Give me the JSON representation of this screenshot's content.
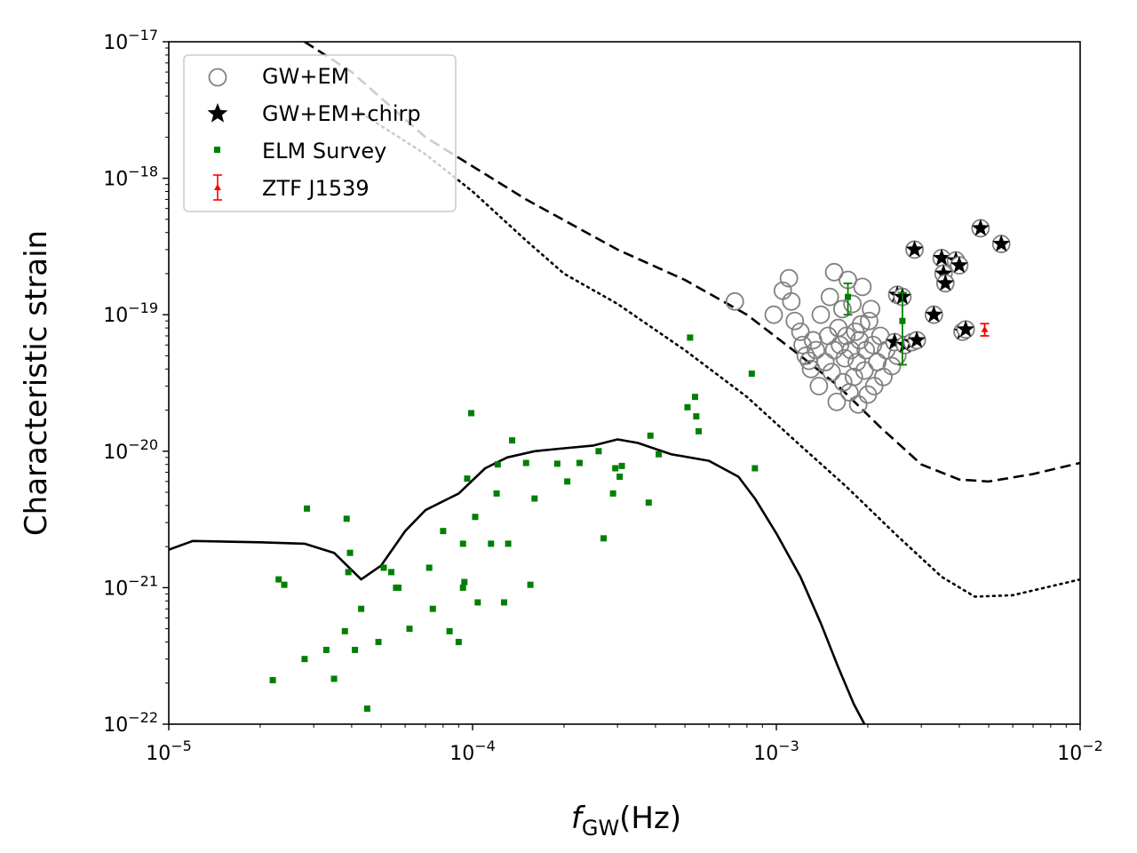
{
  "chart_data": {
    "type": "scatter",
    "xscale": "log",
    "yscale": "log",
    "xlim": [
      1e-05,
      0.01
    ],
    "ylim": [
      1e-22,
      1e-17
    ],
    "xlabel": "f",
    "xlabel_sub": "GW",
    "xlabel_unit": "(Hz)",
    "ylabel": "Characteristic strain",
    "x_ticks": [
      {
        "value": 1e-05,
        "base": "10",
        "exp": "−5"
      },
      {
        "value": 0.0001,
        "base": "10",
        "exp": "−4"
      },
      {
        "value": 0.001,
        "base": "10",
        "exp": "−3"
      },
      {
        "value": 0.01,
        "base": "10",
        "exp": "−2"
      }
    ],
    "y_ticks": [
      {
        "value": 1e-22,
        "base": "10",
        "exp": "−22"
      },
      {
        "value": 1e-21,
        "base": "10",
        "exp": "−21"
      },
      {
        "value": 1e-20,
        "base": "10",
        "exp": "−20"
      },
      {
        "value": 1e-19,
        "base": "10",
        "exp": "−19"
      },
      {
        "value": 1e-18,
        "base": "10",
        "exp": "−18"
      },
      {
        "value": 1e-17,
        "base": "10",
        "exp": "−17"
      }
    ],
    "legend_position": "top-left",
    "legend": [
      {
        "label": "GW+EM",
        "marker": "open-circle",
        "color": "#808080"
      },
      {
        "label": "GW+EM+chirp",
        "marker": "star",
        "color": "#000000"
      },
      {
        "label": "ELM Survey",
        "marker": "square",
        "color": "#008000"
      },
      {
        "label": "ZTF J1539",
        "marker": "errorbar-triangle",
        "color": "#ff0000"
      }
    ],
    "curves": [
      {
        "name": "sensitivity-dashed",
        "style": "dashed",
        "color": "#000000",
        "points": [
          [
            2.8e-05,
            1e-17
          ],
          [
            4e-05,
            6e-18
          ],
          [
            7e-05,
            2e-18
          ],
          [
            0.00015,
            7e-19
          ],
          [
            0.0003,
            3e-19
          ],
          [
            0.0005,
            1.8e-19
          ],
          [
            0.0008,
            1e-19
          ],
          [
            0.0012,
            5e-20
          ],
          [
            0.0016,
            3e-20
          ],
          [
            0.0022,
            1.5e-20
          ],
          [
            0.003,
            8e-21
          ],
          [
            0.004,
            6.2e-21
          ],
          [
            0.005,
            6e-21
          ],
          [
            0.007,
            6.8e-21
          ],
          [
            0.01,
            8.2e-21
          ]
        ]
      },
      {
        "name": "sensitivity-dotted",
        "style": "dotted",
        "color": "#000000",
        "points": [
          [
            4.3e-05,
            3e-18
          ],
          [
            7e-05,
            1.5e-18
          ],
          [
            0.0001,
            8e-19
          ],
          [
            0.00015,
            3.5e-19
          ],
          [
            0.0002,
            2e-19
          ],
          [
            0.0003,
            1.2e-19
          ],
          [
            0.0005,
            5.5e-20
          ],
          [
            0.0008,
            2.5e-20
          ],
          [
            0.0012,
            1.1e-20
          ],
          [
            0.0017,
            5.5e-21
          ],
          [
            0.0025,
            2.4e-21
          ],
          [
            0.0035,
            1.2e-21
          ],
          [
            0.0045,
            8.6e-22
          ],
          [
            0.006,
            8.8e-22
          ],
          [
            0.01,
            1.15e-21
          ]
        ]
      },
      {
        "name": "galactic-foreground",
        "style": "solid",
        "color": "#000000",
        "points": [
          [
            1e-05,
            1.9e-21
          ],
          [
            1.2e-05,
            2.2e-21
          ],
          [
            2e-05,
            2.15e-21
          ],
          [
            2.8e-05,
            2.1e-21
          ],
          [
            3.5e-05,
            1.8e-21
          ],
          [
            4.3e-05,
            1.15e-21
          ],
          [
            5e-05,
            1.45e-21
          ],
          [
            6e-05,
            2.6e-21
          ],
          [
            7e-05,
            3.7e-21
          ],
          [
            9e-05,
            4.9e-21
          ],
          [
            0.00011,
            7.5e-21
          ],
          [
            0.00013,
            9e-21
          ],
          [
            0.00016,
            1e-20
          ],
          [
            0.0002,
            1.05e-20
          ],
          [
            0.00025,
            1.1e-20
          ],
          [
            0.0003,
            1.22e-20
          ],
          [
            0.00035,
            1.15e-20
          ],
          [
            0.00045,
            9.5e-21
          ],
          [
            0.0006,
            8.5e-21
          ],
          [
            0.00075,
            6.5e-21
          ],
          [
            0.00085,
            4.5e-21
          ],
          [
            0.001,
            2.5e-21
          ],
          [
            0.0012,
            1.2e-21
          ],
          [
            0.0014,
            5.5e-22
          ],
          [
            0.0016,
            2.6e-22
          ],
          [
            0.0018,
            1.4e-22
          ],
          [
            0.00195,
            1e-22
          ]
        ]
      }
    ],
    "series": [
      {
        "name": "GW+EM",
        "marker": "open-circle",
        "color": "#808080",
        "points": [
          [
            0.00073,
            1.25e-19
          ],
          [
            0.00098,
            1e-19
          ],
          [
            0.00105,
            1.5e-19
          ],
          [
            0.0011,
            1.85e-19
          ],
          [
            0.00112,
            1.25e-19
          ],
          [
            0.00115,
            9e-20
          ],
          [
            0.0012,
            7.5e-20
          ],
          [
            0.00122,
            6e-20
          ],
          [
            0.00125,
            5e-20
          ],
          [
            0.00128,
            4.6e-20
          ],
          [
            0.0013,
            4e-20
          ],
          [
            0.00132,
            6.5e-20
          ],
          [
            0.00135,
            5.5e-20
          ],
          [
            0.00138,
            3e-20
          ],
          [
            0.0014,
            1e-19
          ],
          [
            0.00145,
            4.5e-20
          ],
          [
            0.00148,
            7e-20
          ],
          [
            0.0015,
            1.35e-19
          ],
          [
            0.00152,
            3.8e-20
          ],
          [
            0.00155,
            2.05e-19
          ],
          [
            0.00155,
            5.5e-20
          ],
          [
            0.00158,
            2.3e-20
          ],
          [
            0.0016,
            8e-20
          ],
          [
            0.00162,
            6e-20
          ],
          [
            0.00165,
            1.1e-19
          ],
          [
            0.00166,
            3.2e-20
          ],
          [
            0.00168,
            4.8e-20
          ],
          [
            0.0017,
            7e-20
          ],
          [
            0.00172,
            1.8e-19
          ],
          [
            0.00174,
            2.7e-20
          ],
          [
            0.00176,
            5.5e-20
          ],
          [
            0.00178,
            1.2e-19
          ],
          [
            0.0018,
            3.5e-20
          ],
          [
            0.00182,
            7.5e-20
          ],
          [
            0.00184,
            4.5e-20
          ],
          [
            0.00186,
            2.2e-20
          ],
          [
            0.00188,
            6.5e-20
          ],
          [
            0.0019,
            8.5e-20
          ],
          [
            0.00192,
            1.6e-19
          ],
          [
            0.00195,
            3.9e-20
          ],
          [
            0.00197,
            5.5e-20
          ],
          [
            0.002,
            2.6e-20
          ],
          [
            0.00202,
            9e-20
          ],
          [
            0.00205,
            1.1e-19
          ],
          [
            0.00208,
            6e-20
          ],
          [
            0.0021,
            3e-20
          ],
          [
            0.00215,
            4.5e-20
          ],
          [
            0.0022,
            7e-20
          ],
          [
            0.00225,
            3.5e-20
          ],
          [
            0.0023,
            5.5e-20
          ],
          [
            0.0024,
            4.2e-20
          ],
          [
            0.0025,
            5e-20
          ]
        ]
      },
      {
        "name": "GW+EM+chirp",
        "marker": "star",
        "color": "#000000",
        "points": [
          [
            0.00245,
            6.3e-20
          ],
          [
            0.0025,
            1.4e-19
          ],
          [
            0.0026,
            1.35e-19
          ],
          [
            0.00265,
            6e-20
          ],
          [
            0.0028,
            6.3e-20
          ],
          [
            0.0029,
            6.5e-20
          ],
          [
            0.00285,
            3e-19
          ],
          [
            0.0033,
            1e-19
          ],
          [
            0.0035,
            2.6e-19
          ],
          [
            0.00355,
            2e-19
          ],
          [
            0.0036,
            1.7e-19
          ],
          [
            0.0039,
            2.5e-19
          ],
          [
            0.004,
            2.3e-19
          ],
          [
            0.0041,
            7.5e-20
          ],
          [
            0.0042,
            7.8e-20
          ],
          [
            0.0047,
            4.3e-19
          ],
          [
            0.0055,
            3.3e-19
          ]
        ]
      },
      {
        "name": "ELM Survey",
        "marker": "square",
        "color": "#008000",
        "points": [
          [
            2.2e-05,
            2.1e-22
          ],
          [
            2.3e-05,
            1.15e-21
          ],
          [
            2.4e-05,
            1.05e-21
          ],
          [
            2.8e-05,
            3e-22
          ],
          [
            2.85e-05,
            3.8e-21
          ],
          [
            3.3e-05,
            3.5e-22
          ],
          [
            3.5e-05,
            2.15e-22
          ],
          [
            3.8e-05,
            4.8e-22
          ],
          [
            3.85e-05,
            3.2e-21
          ],
          [
            3.9e-05,
            1.3e-21
          ],
          [
            3.95e-05,
            1.8e-21
          ],
          [
            4.1e-05,
            3.5e-22
          ],
          [
            4.3e-05,
            7e-22
          ],
          [
            4.5e-05,
            1.3e-22
          ],
          [
            4.9e-05,
            4e-22
          ],
          [
            5.1e-05,
            1.4e-21
          ],
          [
            5.4e-05,
            1.3e-21
          ],
          [
            5.6e-05,
            1e-21
          ],
          [
            5.7e-05,
            1e-21
          ],
          [
            6.2e-05,
            5e-22
          ],
          [
            7.2e-05,
            1.4e-21
          ],
          [
            7.4e-05,
            7e-22
          ],
          [
            8e-05,
            2.6e-21
          ],
          [
            8.4e-05,
            4.8e-22
          ],
          [
            9e-05,
            4e-22
          ],
          [
            9.3e-05,
            2.1e-21
          ],
          [
            9.3e-05,
            1e-21
          ],
          [
            9.4e-05,
            1.1e-21
          ],
          [
            9.6e-05,
            6.3e-21
          ],
          [
            9.9e-05,
            1.9e-20
          ],
          [
            0.000102,
            3.3e-21
          ],
          [
            0.000104,
            7.8e-22
          ],
          [
            0.000115,
            2.1e-21
          ],
          [
            0.00012,
            4.9e-21
          ],
          [
            0.000121,
            8e-21
          ],
          [
            0.000127,
            7.8e-22
          ],
          [
            0.000131,
            2.1e-21
          ],
          [
            0.000135,
            1.2e-20
          ],
          [
            0.00015,
            8.2e-21
          ],
          [
            0.000155,
            1.05e-21
          ],
          [
            0.00016,
            4.5e-21
          ],
          [
            0.00019,
            8.1e-21
          ],
          [
            0.000205,
            6e-21
          ],
          [
            0.000225,
            8.2e-21
          ],
          [
            0.00026,
            1e-20
          ],
          [
            0.00027,
            2.3e-21
          ],
          [
            0.00029,
            4.9e-21
          ],
          [
            0.000295,
            7.5e-21
          ],
          [
            0.000305,
            6.5e-21
          ],
          [
            0.00031,
            7.8e-21
          ],
          [
            0.00038,
            4.2e-21
          ],
          [
            0.000385,
            1.3e-20
          ],
          [
            0.00041,
            9.5e-21
          ],
          [
            0.00051,
            2.1e-20
          ],
          [
            0.00052,
            6.8e-20
          ],
          [
            0.00054,
            2.5e-20
          ],
          [
            0.000545,
            1.8e-20
          ],
          [
            0.000555,
            1.4e-20
          ],
          [
            0.00083,
            3.7e-20
          ],
          [
            0.00085,
            7.5e-21
          ]
        ]
      },
      {
        "name": "ELM Survey errorbars",
        "marker": "errorbar",
        "color": "#008000",
        "points": [
          [
            0.00172,
            1.35e-19,
            1e-19,
            1.7e-19
          ],
          [
            0.0026,
            9e-20,
            4.3e-20,
            1.45e-19
          ]
        ]
      },
      {
        "name": "ZTF J1539",
        "marker": "errorbar-triangle",
        "color": "#ff0000",
        "points": [
          [
            0.00485,
            7.8e-20,
            7e-20,
            8.6e-20
          ]
        ]
      }
    ]
  }
}
